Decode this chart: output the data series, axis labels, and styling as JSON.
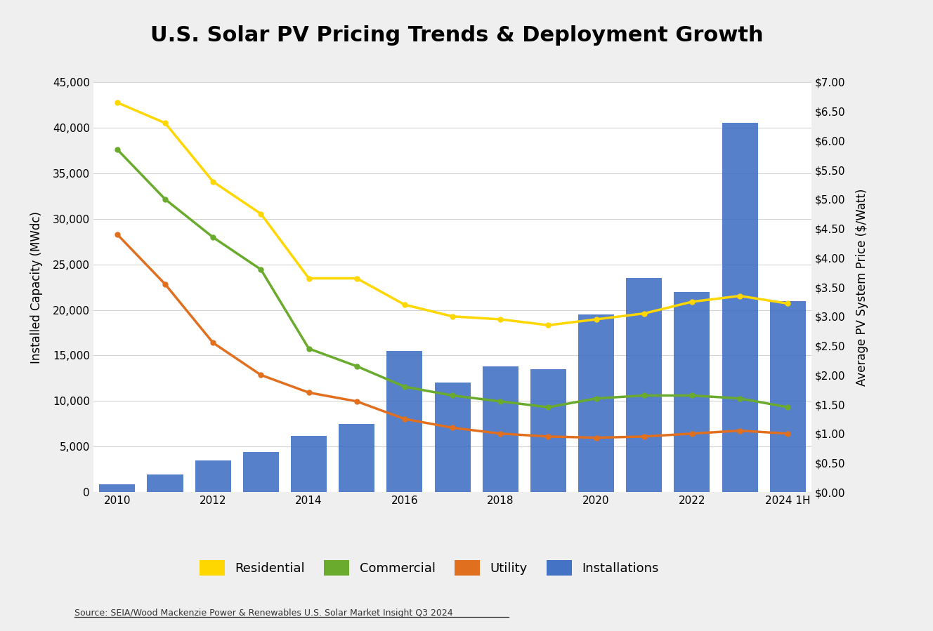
{
  "title": "U.S. Solar PV Pricing Trends & Deployment Growth",
  "year_positions": [
    2010,
    2011,
    2012,
    2013,
    2014,
    2015,
    2016,
    2017,
    2018,
    2019,
    2020,
    2021,
    2022,
    2023,
    2024
  ],
  "installations_mw": [
    900,
    1950,
    3500,
    4400,
    6200,
    7500,
    15500,
    12000,
    13800,
    13500,
    19500,
    23500,
    22000,
    40500,
    21000
  ],
  "residential_price": [
    6.65,
    6.3,
    5.3,
    4.75,
    3.65,
    3.65,
    3.2,
    3.0,
    2.95,
    2.85,
    2.95,
    3.05,
    3.25,
    3.35,
    3.22
  ],
  "commercial_price": [
    5.85,
    5.0,
    4.35,
    3.8,
    2.45,
    2.15,
    1.8,
    1.65,
    1.55,
    1.45,
    1.6,
    1.65,
    1.65,
    1.6,
    1.45
  ],
  "utility_price": [
    4.4,
    3.55,
    2.55,
    2.0,
    1.7,
    1.55,
    1.25,
    1.1,
    1.0,
    0.95,
    0.93,
    0.95,
    1.0,
    1.05,
    1.0
  ],
  "bar_color": "#4472C4",
  "residential_color": "#FFD700",
  "commercial_color": "#6AAB2E",
  "utility_color": "#E07020",
  "left_ylabel": "Installed Capacity (MWdc)",
  "right_ylabel": "Average PV System Price ($/Watt)",
  "ylim_left": [
    0,
    45000
  ],
  "ylim_right": [
    0.0,
    7.0
  ],
  "background_color": "#EFEFEF",
  "plot_background": "#FFFFFF",
  "source_text": "Source: SEIA/Wood Mackenzie Power & Renewables U.S. Solar Market Insight Q3 2024",
  "xtick_positions": [
    2010,
    2012,
    2014,
    2016,
    2018,
    2020,
    2022,
    2024
  ],
  "xtick_labels": [
    "2010",
    "2012",
    "2014",
    "2016",
    "2018",
    "2020",
    "2022",
    "2024 1H"
  ],
  "left_yticks": [
    0,
    5000,
    10000,
    15000,
    20000,
    25000,
    30000,
    35000,
    40000,
    45000
  ],
  "right_yticks": [
    0.0,
    0.5,
    1.0,
    1.5,
    2.0,
    2.5,
    3.0,
    3.5,
    4.0,
    4.5,
    5.0,
    5.5,
    6.0,
    6.5,
    7.0
  ]
}
